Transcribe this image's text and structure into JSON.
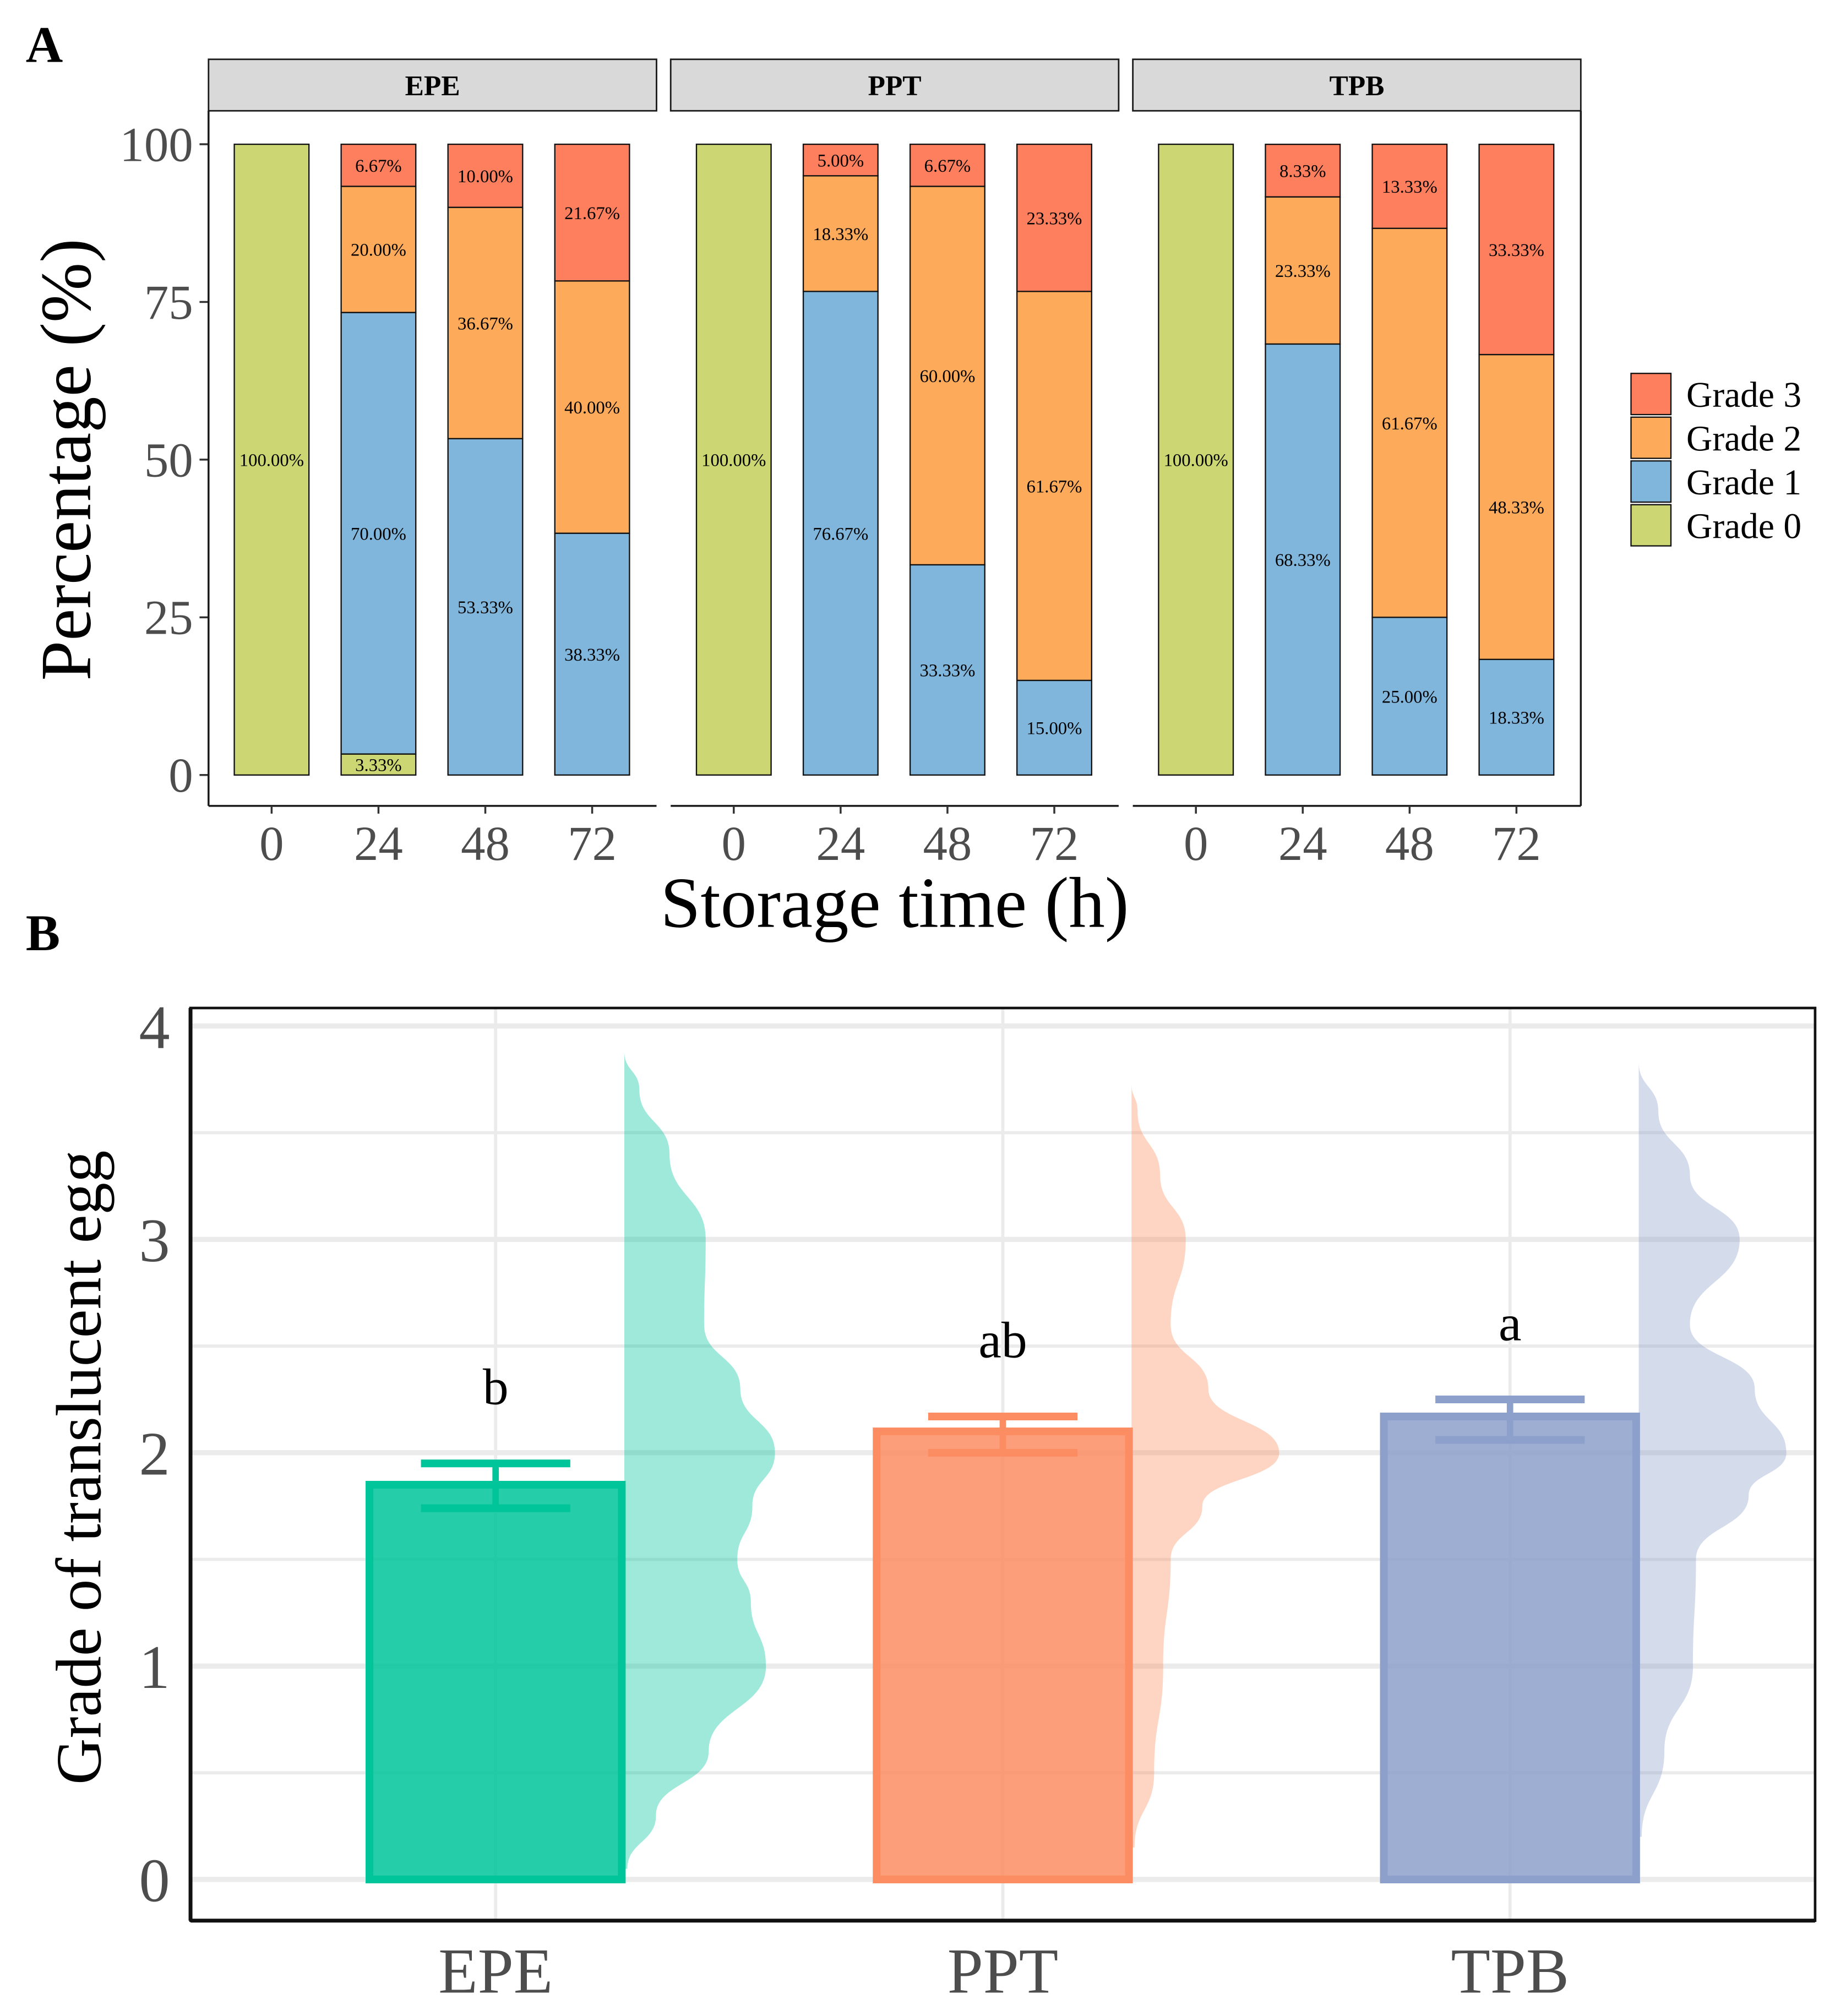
{
  "chart_data": [
    {
      "panel_label": "A",
      "type": "bar",
      "stacked": true,
      "facets": [
        "EPE",
        "PPT",
        "TPB"
      ],
      "categories": [
        "0",
        "24",
        "48",
        "72"
      ],
      "xlabel": "Storage time (h)",
      "ylabel": "Percentage (%)",
      "ylim": [
        0,
        100
      ],
      "yticks": [
        "0",
        "25",
        "50",
        "75",
        "100"
      ],
      "legend_position": "right",
      "series": [
        {
          "name": "Grade 0",
          "color": "#CCD673",
          "values": {
            "EPE": [
              100,
              3.33,
              0,
              0
            ],
            "PPT": [
              100,
              0,
              0,
              0
            ],
            "TPB": [
              100,
              0,
              0,
              0
            ]
          }
        },
        {
          "name": "Grade 1",
          "color": "#80B6DC",
          "values": {
            "EPE": [
              0,
              70.0,
              53.33,
              38.33
            ],
            "PPT": [
              0,
              76.67,
              33.33,
              15.0
            ],
            "TPB": [
              0,
              68.33,
              25.0,
              18.33
            ]
          }
        },
        {
          "name": "Grade 2",
          "color": "#FDAA5A",
          "values": {
            "EPE": [
              0,
              20.0,
              36.67,
              40.0
            ],
            "PPT": [
              0,
              18.33,
              60.0,
              61.67
            ],
            "TPB": [
              0,
              23.33,
              61.67,
              48.33
            ]
          }
        },
        {
          "name": "Grade 3",
          "color": "#FE7F5D",
          "values": {
            "EPE": [
              0,
              6.67,
              10.0,
              21.67
            ],
            "PPT": [
              0,
              5.0,
              6.67,
              23.33
            ],
            "TPB": [
              0,
              8.33,
              13.33,
              33.33
            ]
          }
        }
      ]
    },
    {
      "panel_label": "B",
      "type": "bar",
      "overlay": "half-violin",
      "categories": [
        "EPE",
        "PPT",
        "TPB"
      ],
      "values": [
        1.85,
        2.1,
        2.17
      ],
      "error_low": [
        1.74,
        2.0,
        2.06
      ],
      "error_high": [
        1.95,
        2.17,
        2.25
      ],
      "significance": [
        "b",
        "ab",
        "a"
      ],
      "colors": [
        "#00C49A",
        "#FC8D62",
        "#8DA0CB"
      ],
      "ylabel": "Grade of translucent egg",
      "xlabel": "",
      "ylim": [
        0,
        4
      ],
      "yticks": [
        "0",
        "1",
        "2",
        "3",
        "4"
      ],
      "grid": true,
      "violin_density": [
        [
          [
            0.05,
            0.02
          ],
          [
            0.3,
            0.21
          ],
          [
            0.6,
            0.56
          ],
          [
            1.0,
            0.94
          ],
          [
            1.3,
            0.84
          ],
          [
            1.5,
            0.75
          ],
          [
            1.75,
            0.85
          ],
          [
            2.0,
            1.0
          ],
          [
            2.3,
            0.77
          ],
          [
            2.6,
            0.53
          ],
          [
            3.0,
            0.54
          ],
          [
            3.4,
            0.3
          ],
          [
            3.7,
            0.1
          ],
          [
            3.88,
            0
          ]
        ],
        [
          [
            0.15,
            0.02
          ],
          [
            0.5,
            0.15
          ],
          [
            1.0,
            0.21
          ],
          [
            1.5,
            0.26
          ],
          [
            1.75,
            0.47
          ],
          [
            2.0,
            0.98
          ],
          [
            2.3,
            0.51
          ],
          [
            2.6,
            0.26
          ],
          [
            3.0,
            0.36
          ],
          [
            3.3,
            0.19
          ],
          [
            3.6,
            0.04
          ],
          [
            3.73,
            0
          ]
        ],
        [
          [
            0.2,
            0.02
          ],
          [
            0.6,
            0.17
          ],
          [
            1.0,
            0.36
          ],
          [
            1.5,
            0.38
          ],
          [
            1.8,
            0.73
          ],
          [
            2.0,
            0.98
          ],
          [
            2.3,
            0.77
          ],
          [
            2.6,
            0.34
          ],
          [
            3.0,
            0.67
          ],
          [
            3.3,
            0.34
          ],
          [
            3.6,
            0.13
          ],
          [
            3.83,
            0
          ]
        ]
      ]
    }
  ]
}
